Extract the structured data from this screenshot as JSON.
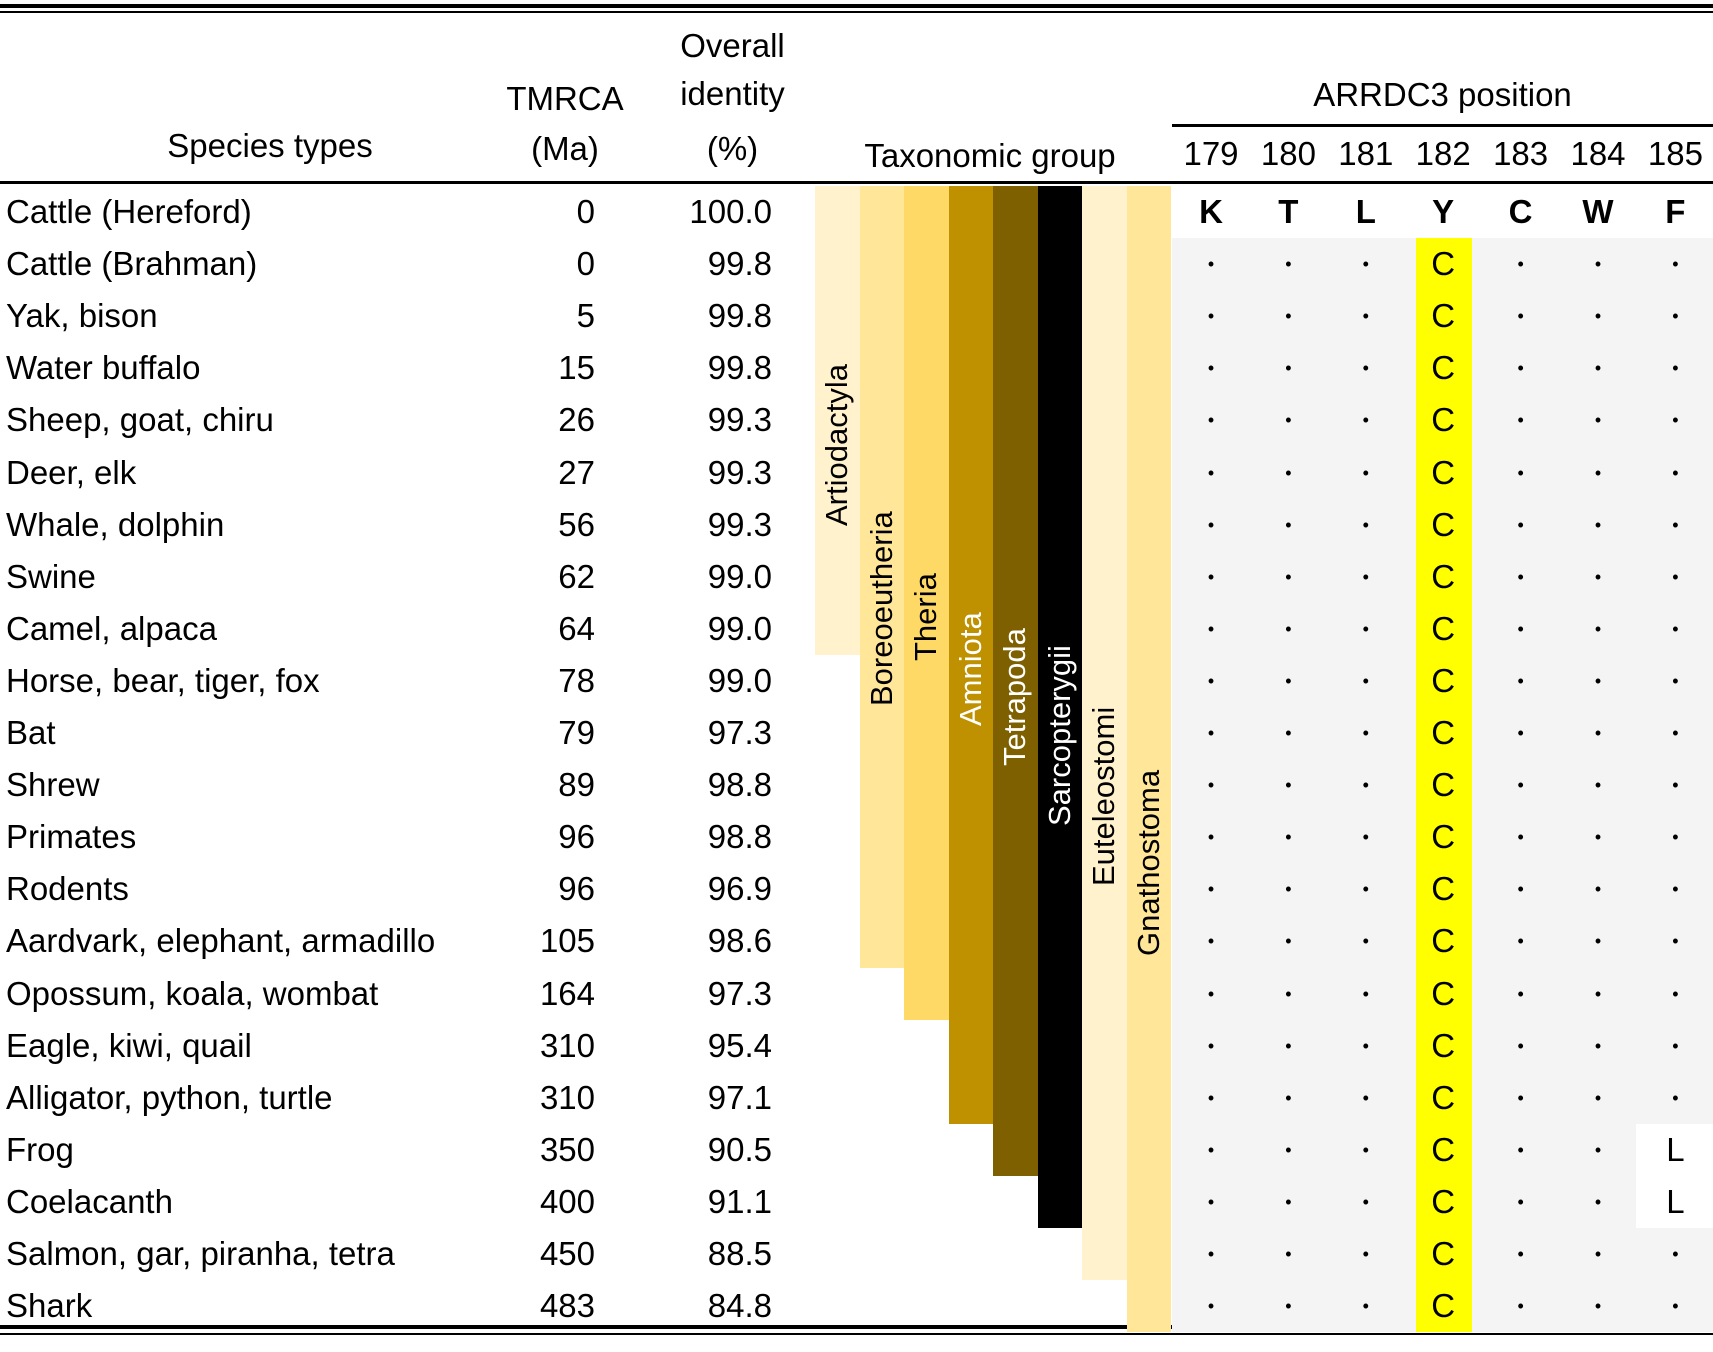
{
  "headers": {
    "species": "Species types",
    "tmrca_line1": "TMRCA",
    "tmrca_line2": "(Ma)",
    "identity_line1": "Overall",
    "identity_line2": "identity",
    "identity_line3": "(%)",
    "taxonomic": "Taxonomic group",
    "arrdc3": "ARRDC3 position",
    "positions": [
      "179",
      "180",
      "181",
      "182",
      "183",
      "184",
      "185"
    ]
  },
  "reference_residues": [
    "K",
    "T",
    "L",
    "Y",
    "C",
    "W",
    "F"
  ],
  "rows": [
    {
      "species": "Cattle (Hereford)",
      "tmrca": "0",
      "identity": "100.0",
      "residues": [
        "K",
        "T",
        "L",
        "Y",
        "C",
        "W",
        "F"
      ]
    },
    {
      "species": "Cattle (Brahman)",
      "tmrca": "0",
      "identity": "99.8",
      "residues": [
        ".",
        ".",
        ".",
        "C",
        ".",
        ".",
        "."
      ]
    },
    {
      "species": "Yak, bison",
      "tmrca": "5",
      "identity": "99.8",
      "residues": [
        ".",
        ".",
        ".",
        "C",
        ".",
        ".",
        "."
      ]
    },
    {
      "species": "Water buffalo",
      "tmrca": "15",
      "identity": "99.8",
      "residues": [
        ".",
        ".",
        ".",
        "C",
        ".",
        ".",
        "."
      ]
    },
    {
      "species": "Sheep, goat, chiru",
      "tmrca": "26",
      "identity": "99.3",
      "residues": [
        ".",
        ".",
        ".",
        "C",
        ".",
        ".",
        "."
      ]
    },
    {
      "species": "Deer, elk",
      "tmrca": "27",
      "identity": "99.3",
      "residues": [
        ".",
        ".",
        ".",
        "C",
        ".",
        ".",
        "."
      ]
    },
    {
      "species": "Whale, dolphin",
      "tmrca": "56",
      "identity": "99.3",
      "residues": [
        ".",
        ".",
        ".",
        "C",
        ".",
        ".",
        "."
      ]
    },
    {
      "species": "Swine",
      "tmrca": "62",
      "identity": "99.0",
      "residues": [
        ".",
        ".",
        ".",
        "C",
        ".",
        ".",
        "."
      ]
    },
    {
      "species": "Camel, alpaca",
      "tmrca": "64",
      "identity": "99.0",
      "residues": [
        ".",
        ".",
        ".",
        "C",
        ".",
        ".",
        "."
      ]
    },
    {
      "species": "Horse, bear, tiger, fox",
      "tmrca": "78",
      "identity": "99.0",
      "residues": [
        ".",
        ".",
        ".",
        "C",
        ".",
        ".",
        "."
      ]
    },
    {
      "species": "Bat",
      "tmrca": "79",
      "identity": "97.3",
      "residues": [
        ".",
        ".",
        ".",
        "C",
        ".",
        ".",
        "."
      ]
    },
    {
      "species": "Shrew",
      "tmrca": "89",
      "identity": "98.8",
      "residues": [
        ".",
        ".",
        ".",
        "C",
        ".",
        ".",
        "."
      ]
    },
    {
      "species": "Primates",
      "tmrca": "96",
      "identity": "98.8",
      "residues": [
        ".",
        ".",
        ".",
        "C",
        ".",
        ".",
        "."
      ]
    },
    {
      "species": "Rodents",
      "tmrca": "96",
      "identity": "96.9",
      "residues": [
        ".",
        ".",
        ".",
        "C",
        ".",
        ".",
        "."
      ]
    },
    {
      "species": "Aardvark, elephant, armadillo",
      "tmrca": "105",
      "identity": "98.6",
      "residues": [
        ".",
        ".",
        ".",
        "C",
        ".",
        ".",
        "."
      ]
    },
    {
      "species": "Opossum, koala, wombat",
      "tmrca": "164",
      "identity": "97.3",
      "residues": [
        ".",
        ".",
        ".",
        "C",
        ".",
        ".",
        "."
      ]
    },
    {
      "species": "Eagle, kiwi, quail",
      "tmrca": "310",
      "identity": "95.4",
      "residues": [
        ".",
        ".",
        ".",
        "C",
        ".",
        ".",
        "."
      ]
    },
    {
      "species": "Alligator, python, turtle",
      "tmrca": "310",
      "identity": "97.1",
      "residues": [
        ".",
        ".",
        ".",
        "C",
        ".",
        ".",
        "."
      ]
    },
    {
      "species": "Frog",
      "tmrca": "350",
      "identity": "90.5",
      "residues": [
        ".",
        ".",
        ".",
        "C",
        ".",
        ".",
        "L"
      ]
    },
    {
      "species": "Coelacanth",
      "tmrca": "400",
      "identity": "91.1",
      "residues": [
        ".",
        ".",
        ".",
        "C",
        ".",
        ".",
        "L"
      ]
    },
    {
      "species": "Salmon, gar, piranha, tetra",
      "tmrca": "450",
      "identity": "88.5",
      "residues": [
        ".",
        ".",
        ".",
        "C",
        ".",
        ".",
        "."
      ]
    },
    {
      "species": "Shark",
      "tmrca": "483",
      "identity": "84.8",
      "residues": [
        ".",
        ".",
        ".",
        "C",
        ".",
        ".",
        "."
      ]
    }
  ],
  "taxonomic_groups": [
    {
      "name": "Artiodactyla",
      "last_row": 8,
      "color": "#fff2cc",
      "text_color": "#000000"
    },
    {
      "name": "Boreoeutheria",
      "last_row": 14,
      "color": "#ffe699",
      "text_color": "#000000"
    },
    {
      "name": "Theria",
      "last_row": 15,
      "color": "#ffd966",
      "text_color": "#000000"
    },
    {
      "name": "Amniota",
      "last_row": 17,
      "color": "#bf9000",
      "text_color": "#ffffff"
    },
    {
      "name": "Tetrapoda",
      "last_row": 18,
      "color": "#7f6000",
      "text_color": "#ffffff"
    },
    {
      "name": "Sarcopterygii",
      "last_row": 19,
      "color": "#000000",
      "text_color": "#ffffff"
    },
    {
      "name": "Euteleostomi",
      "last_row": 20,
      "color": "#fff2cc",
      "text_color": "#000000"
    },
    {
      "name": "Gnathostoma",
      "last_row": 21,
      "color": "#ffe699",
      "text_color": "#000000"
    }
  ],
  "colors": {
    "highlight_column": "#ffff00",
    "alignment_background": "#f4f4f4"
  }
}
